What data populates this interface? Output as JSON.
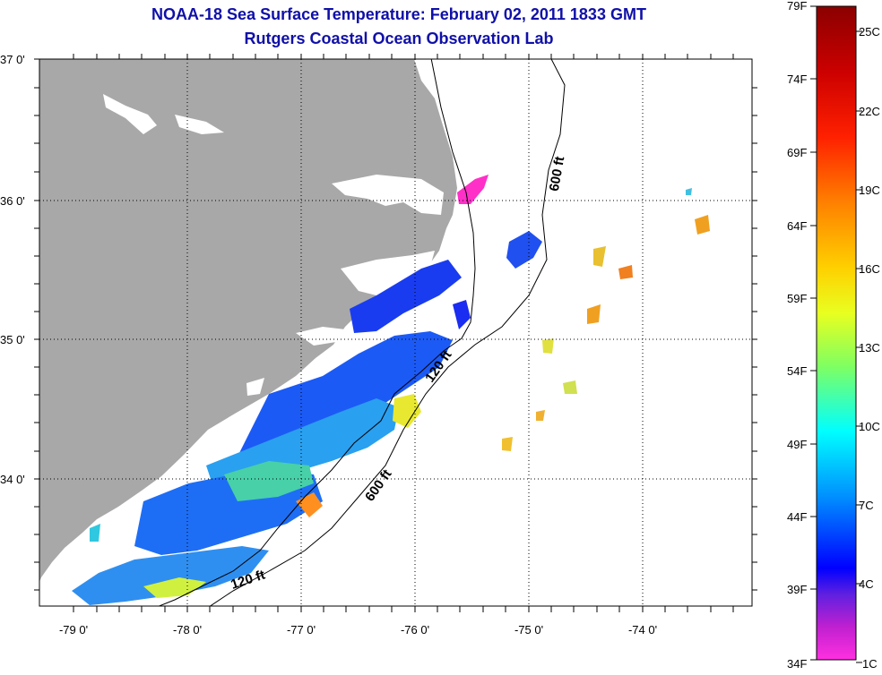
{
  "title": {
    "line1": "NOAA-18 Sea Surface Temperature:  February 02, 2011 1833 GMT",
    "line2": "Rutgers Coastal Ocean Observation Lab"
  },
  "map": {
    "lat_labels": [
      "37 0'",
      "36 0'",
      "35 0'",
      "34 0'"
    ],
    "lon_labels": [
      "-79 0'",
      "-78 0'",
      "-77 0'",
      "-76 0'",
      "-75 0'",
      "-74 0'"
    ],
    "depth_labels": {
      "c120_north": "120 ft",
      "c120_south": "120 ft",
      "c600_north": "600 ft",
      "c600_south": "600 ft"
    },
    "colors": {
      "land": "#a8a8a8",
      "no_data": "#ffffff",
      "frame": "#000000"
    }
  },
  "colorbar": {
    "fahrenheit_labels": [
      "79F",
      "74F",
      "69F",
      "64F",
      "59F",
      "54F",
      "49F",
      "44F",
      "39F",
      "34F"
    ],
    "celsius_labels": [
      "25C",
      "22C",
      "19C",
      "16C",
      "13C",
      "10C",
      "7C",
      "4C",
      "1C"
    ],
    "gradient_colors": [
      "#8b0000",
      "#ff0000",
      "#ff8000",
      "#ffff00",
      "#80ff40",
      "#00ffff",
      "#0080ff",
      "#0000ff",
      "#8000ff",
      "#ff00c0"
    ]
  }
}
